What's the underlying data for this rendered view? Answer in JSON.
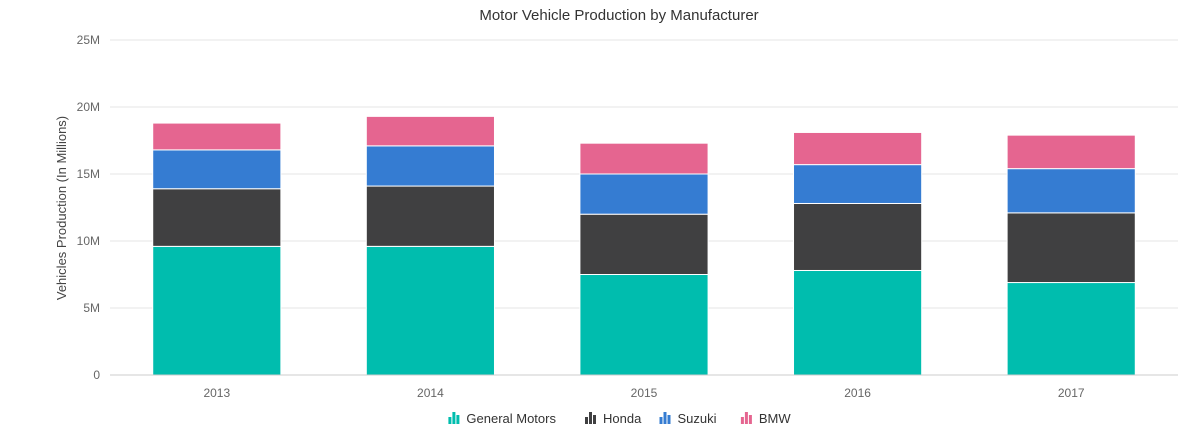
{
  "chart_data": {
    "type": "bar",
    "stacked": true,
    "title": "Motor Vehicle Production by Manufacturer",
    "xlabel": "",
    "ylabel": "Vehicles Production (In Millions)",
    "categories": [
      "2013",
      "2014",
      "2015",
      "2016",
      "2017"
    ],
    "series": [
      {
        "name": "General Motors",
        "color": "#00bdae",
        "values": [
          9.6,
          9.6,
          7.5,
          7.8,
          6.9
        ]
      },
      {
        "name": "Honda",
        "color": "#404041",
        "values": [
          4.3,
          4.5,
          4.5,
          5.0,
          5.2
        ]
      },
      {
        "name": "Suzuki",
        "color": "#357cd2",
        "values": [
          2.9,
          3.0,
          3.0,
          2.9,
          3.3
        ]
      },
      {
        "name": "BMW",
        "color": "#e56590",
        "values": [
          2.0,
          2.2,
          2.3,
          2.4,
          2.5
        ]
      }
    ],
    "ylim": [
      0,
      25
    ],
    "yticks": [
      0,
      5,
      10,
      15,
      20,
      25
    ],
    "ytick_labels": [
      "0",
      "5M",
      "10M",
      "15M",
      "20M",
      "25M"
    ],
    "grid": true,
    "legend_position": "bottom"
  }
}
